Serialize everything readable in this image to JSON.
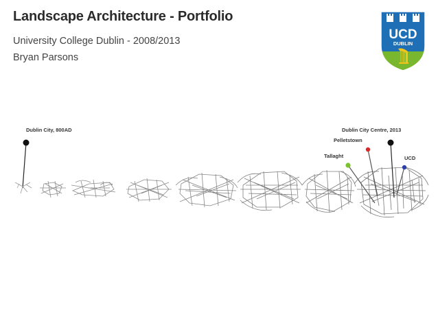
{
  "header": {
    "title": "Landscape Architecture - Portfolio",
    "subtitle": "University College Dublin - 2008/2013",
    "author": "Bryan Parsons"
  },
  "logo": {
    "text_main": "UCD",
    "text_sub": "DUBLIN",
    "colors": {
      "shield_blue": "#1e6fb5",
      "shield_green": "#79b72e",
      "harp": "#f2c318"
    }
  },
  "diagram": {
    "label_start": "Dublin City, 800AD",
    "label_end": "Dublin City Centre, 2013",
    "markers": [
      {
        "label": "Pelletstown",
        "color": "#d62a2a"
      },
      {
        "label": "Tallaght",
        "color": "#7cc22c"
      },
      {
        "label": "UCD",
        "color": "#2a3fa8"
      }
    ]
  }
}
